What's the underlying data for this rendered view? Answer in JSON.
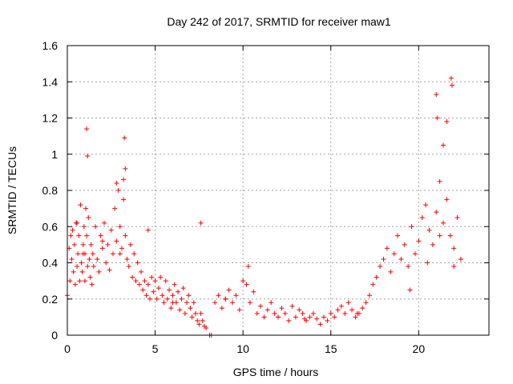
{
  "chart_data": {
    "type": "scatter",
    "title": "Day 242 of 2017, SRMTID for receiver maw1",
    "xlabel": "GPS time / hours",
    "ylabel": "SRMTID / TECUs",
    "xlim": [
      0,
      24
    ],
    "ylim": [
      0,
      1.6
    ],
    "x_ticks": [
      0,
      5,
      10,
      15,
      20
    ],
    "x_tick_labels": [
      "0",
      "5",
      "10",
      "15",
      "20"
    ],
    "y_ticks": [
      0,
      0.2,
      0.4,
      0.6,
      0.8,
      1,
      1.2,
      1.4,
      1.6
    ],
    "y_tick_labels": [
      "0",
      "0.2",
      "0.4",
      "0.6",
      "0.8",
      "1",
      "1.2",
      "1.4",
      "1.6"
    ],
    "grid": true,
    "marker": "plus",
    "color": "#ff0000",
    "series": [
      {
        "name": "maw1",
        "x": [
          0.0,
          0.1,
          0.15,
          0.2,
          0.25,
          0.3,
          0.35,
          0.4,
          0.45,
          0.5,
          0.55,
          0.6,
          0.65,
          0.7,
          0.75,
          0.8,
          0.85,
          0.9,
          0.95,
          1.0,
          1.05,
          1.1,
          1.15,
          1.2,
          1.25,
          1.3,
          1.35,
          1.4,
          1.45,
          1.5,
          1.6,
          1.7,
          1.8,
          1.9,
          2.0,
          2.1,
          2.2,
          2.3,
          2.4,
          2.5,
          2.6,
          2.7,
          2.8,
          2.9,
          3.0,
          3.1,
          3.2,
          3.3,
          3.4,
          3.5,
          3.6,
          3.7,
          3.8,
          3.9,
          4.0,
          4.1,
          4.2,
          4.3,
          4.4,
          4.5,
          4.6,
          4.7,
          4.8,
          4.9,
          5.0,
          5.1,
          5.2,
          5.3,
          5.4,
          5.5,
          5.6,
          5.7,
          5.8,
          5.9,
          6.0,
          6.1,
          6.2,
          6.3,
          6.4,
          6.5,
          6.6,
          6.7,
          6.8,
          6.9,
          7.0,
          7.1,
          7.2,
          7.3,
          7.4,
          7.5,
          7.6,
          7.7,
          7.8,
          7.9,
          8.1,
          8.4,
          8.6,
          8.8,
          9.0,
          9.2,
          9.4,
          9.6,
          9.8,
          10.0,
          10.2,
          10.4,
          10.6,
          10.8,
          11.0,
          11.2,
          11.4,
          11.6,
          11.8,
          12.0,
          12.2,
          12.4,
          12.6,
          12.8,
          13.0,
          13.2,
          13.4,
          13.6,
          13.8,
          14.0,
          14.2,
          14.4,
          14.6,
          14.8,
          15.0,
          15.2,
          15.4,
          15.6,
          15.8,
          16.0,
          16.2,
          16.4,
          16.6,
          16.8,
          17.0,
          17.2,
          17.4,
          17.6,
          17.8,
          18.0,
          18.2,
          18.4,
          18.6,
          18.8,
          19.0,
          19.2,
          19.4,
          19.6,
          19.8,
          20.0,
          20.2,
          20.4,
          20.6,
          20.8,
          21.0,
          21.2,
          21.4,
          21.6,
          21.8,
          22.0,
          22.2,
          22.4,
          1.1,
          1.15,
          3.25,
          3.3,
          3.2,
          2.8,
          21.85,
          21.9,
          21.0,
          21.05,
          21.4,
          21.6,
          7.6,
          8.2,
          10.3,
          4.6,
          0.55,
          0.9,
          1.0,
          2.0,
          3.0,
          6.0,
          9.0,
          12.0,
          13.5,
          16.5,
          19.5,
          20.5,
          21.2,
          22.0
        ],
        "y": [
          0.22,
          0.48,
          0.3,
          0.55,
          0.42,
          0.58,
          0.35,
          0.5,
          0.28,
          0.62,
          0.38,
          0.45,
          0.55,
          0.3,
          0.72,
          0.4,
          0.35,
          0.5,
          0.6,
          0.45,
          0.7,
          0.55,
          0.38,
          0.65,
          0.42,
          0.32,
          0.5,
          0.28,
          0.45,
          0.38,
          0.6,
          0.42,
          0.35,
          0.55,
          0.48,
          0.62,
          0.4,
          0.5,
          0.36,
          0.58,
          0.45,
          0.7,
          0.52,
          0.8,
          0.6,
          0.48,
          0.75,
          0.55,
          0.42,
          0.38,
          0.5,
          0.32,
          0.45,
          0.3,
          0.4,
          0.28,
          0.35,
          0.25,
          0.3,
          0.22,
          0.28,
          0.2,
          0.32,
          0.24,
          0.3,
          0.2,
          0.26,
          0.32,
          0.22,
          0.18,
          0.3,
          0.2,
          0.25,
          0.15,
          0.22,
          0.28,
          0.18,
          0.24,
          0.14,
          0.2,
          0.26,
          0.12,
          0.18,
          0.22,
          0.15,
          0.1,
          0.18,
          0.12,
          0.08,
          0.06,
          0.12,
          0.08,
          0.05,
          0.04,
          0.0,
          0.18,
          0.22,
          0.15,
          0.2,
          0.25,
          0.18,
          0.22,
          0.14,
          0.3,
          0.28,
          0.18,
          0.24,
          0.12,
          0.16,
          0.1,
          0.14,
          0.18,
          0.12,
          0.1,
          0.15,
          0.12,
          0.08,
          0.16,
          0.1,
          0.14,
          0.12,
          0.08,
          0.1,
          0.12,
          0.09,
          0.06,
          0.1,
          0.08,
          0.12,
          0.1,
          0.14,
          0.16,
          0.12,
          0.18,
          0.14,
          0.1,
          0.12,
          0.15,
          0.18,
          0.22,
          0.28,
          0.32,
          0.38,
          0.42,
          0.48,
          0.35,
          0.45,
          0.55,
          0.42,
          0.5,
          0.38,
          0.6,
          0.45,
          0.52,
          0.65,
          0.72,
          0.58,
          0.5,
          0.68,
          0.85,
          0.62,
          0.75,
          0.55,
          0.48,
          0.65,
          0.42,
          1.14,
          0.99,
          1.09,
          0.92,
          0.86,
          0.84,
          1.42,
          1.38,
          1.33,
          1.2,
          1.05,
          1.18,
          0.62,
          0.0,
          0.38,
          0.58,
          0.62,
          0.45,
          0.3,
          0.52,
          0.45,
          0.18,
          0.2,
          0.1,
          0.09,
          0.12,
          0.25,
          0.4,
          0.55,
          0.38
        ]
      }
    ]
  }
}
